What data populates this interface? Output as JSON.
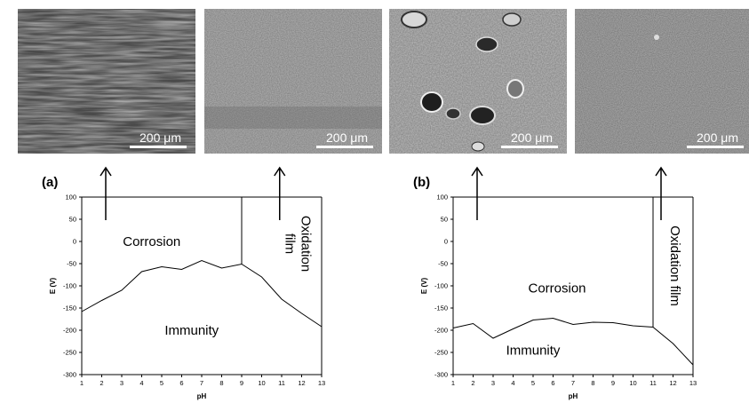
{
  "images": [
    {
      "name": "sem-image-1",
      "scale_label": "200 μm"
    },
    {
      "name": "sem-image-2",
      "scale_label": "200 μm"
    },
    {
      "name": "sem-image-3",
      "scale_label": "200 μm"
    },
    {
      "name": "sem-image-4",
      "scale_label": "200 μm"
    }
  ],
  "chart_data": [
    {
      "type": "line",
      "panel_label": "(a)",
      "xlabel": "pH",
      "ylabel": "E (V)",
      "xlim": [
        1,
        13
      ],
      "ylim": [
        -300,
        100
      ],
      "xticks": [
        1,
        2,
        3,
        4,
        5,
        6,
        7,
        8,
        9,
        10,
        11,
        12,
        13
      ],
      "yticks": [
        100,
        50,
        0,
        -50,
        -100,
        -150,
        -200,
        -250,
        -300
      ],
      "grid": false,
      "series": [
        {
          "x": [
            1,
            2,
            3,
            4,
            5,
            6,
            7,
            8,
            9,
            10,
            11,
            12,
            13
          ],
          "y": [
            -158,
            -133,
            -110,
            -68,
            -57,
            -63,
            -43,
            -60,
            -51,
            -80,
            -130,
            -162,
            -192
          ]
        }
      ],
      "vlines": [
        {
          "x": 9,
          "from": -51,
          "to": 100
        }
      ],
      "regions": [
        {
          "label": "Corrosion",
          "x": 4.5,
          "y": 0
        },
        {
          "label": "Immunity",
          "x": 6.5,
          "y": -200
        },
        {
          "label": "Oxidation film",
          "x": 11.6,
          "y": -5,
          "rotated": true,
          "lines": [
            "Oxidation",
            "film"
          ]
        }
      ],
      "arrows": [
        {
          "x": 2.2
        },
        {
          "x": 10.9
        }
      ]
    },
    {
      "type": "line",
      "panel_label": "(b)",
      "xlabel": "pH",
      "ylabel": "E (V)",
      "xlim": [
        1,
        13
      ],
      "ylim": [
        -300,
        100
      ],
      "xticks": [
        1,
        2,
        3,
        4,
        5,
        6,
        7,
        8,
        9,
        10,
        11,
        12,
        13
      ],
      "yticks": [
        100,
        50,
        0,
        -50,
        -100,
        -150,
        -200,
        -250,
        -300
      ],
      "grid": false,
      "series": [
        {
          "x": [
            1,
            2,
            3,
            4,
            5,
            6,
            7,
            8,
            9,
            10,
            11,
            12,
            13
          ],
          "y": [
            -195,
            -185,
            -218,
            -197,
            -177,
            -173,
            -187,
            -182,
            -183,
            -190,
            -193,
            -230,
            -278
          ]
        }
      ],
      "vlines": [
        {
          "x": 11,
          "from": -193,
          "to": 100
        }
      ],
      "regions": [
        {
          "label": "Corrosion",
          "x": 6.2,
          "y": -105
        },
        {
          "label": "Immunity",
          "x": 5.0,
          "y": -245
        },
        {
          "label": "Oxidation film",
          "x": 12.1,
          "y": -55,
          "rotated": true,
          "lines": [
            "Oxidation film"
          ]
        }
      ],
      "arrows": [
        {
          "x": 2.2
        },
        {
          "x": 11.4
        }
      ]
    }
  ]
}
